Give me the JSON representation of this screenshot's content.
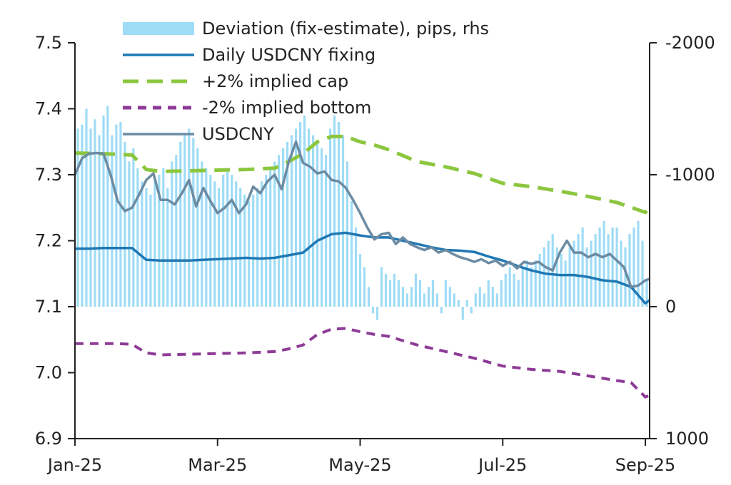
{
  "chart_data": {
    "type": "line",
    "x_ticks": [
      "Jan-25",
      "Mar-25",
      "May-25",
      "Jul-25",
      "Sep-25"
    ],
    "y_left": {
      "range": [
        6.9,
        7.5
      ],
      "ticks": [
        "6.9",
        "7.0",
        "7.1",
        "7.2",
        "7.3",
        "7.4",
        "7.5"
      ]
    },
    "y_right": {
      "range": [
        1000,
        -2000
      ],
      "inverted": true,
      "ticks": [
        "1000",
        "0",
        "-1000",
        "-2000"
      ]
    },
    "grid": false,
    "legend_placement": "top-left",
    "legend": [
      {
        "label": "Deviation (fix-estimate), pips, rhs",
        "style": "bar",
        "color": "#9fdcf5"
      },
      {
        "label": "Daily USDCNY fixing",
        "style": "solid",
        "color": "#1f78b4"
      },
      {
        "label": "+2% implied cap",
        "style": "dashed",
        "color": "#8cc63f"
      },
      {
        "label": "-2% implied bottom",
        "style": "dashed",
        "color": "#8e3b97"
      },
      {
        "label": "USDCNY",
        "style": "solid",
        "color": "#6c8ba3"
      }
    ],
    "series": [
      {
        "key": "fixing",
        "x": [
          0,
          0.1,
          0.2,
          0.3,
          0.4,
          0.5,
          0.6,
          0.7,
          0.8,
          0.9,
          1.0,
          1.1,
          1.2,
          1.3,
          1.4,
          1.5,
          1.6,
          1.7,
          1.8,
          1.9,
          2.0,
          2.1,
          2.2,
          2.3,
          2.4,
          2.5,
          2.6,
          2.7,
          2.8,
          2.9,
          3.0,
          3.1,
          3.2,
          3.3,
          3.4,
          3.5,
          3.6,
          3.7,
          3.8,
          3.9,
          4.0,
          4.03
        ],
        "y": [
          7.188,
          7.188,
          7.189,
          7.189,
          7.189,
          7.171,
          7.17,
          7.17,
          7.17,
          7.171,
          7.172,
          7.173,
          7.174,
          7.173,
          7.174,
          7.178,
          7.182,
          7.2,
          7.21,
          7.212,
          7.208,
          7.205,
          7.205,
          7.2,
          7.195,
          7.19,
          7.186,
          7.185,
          7.183,
          7.176,
          7.17,
          7.162,
          7.155,
          7.15,
          7.148,
          7.148,
          7.145,
          7.14,
          7.138,
          7.13,
          7.105,
          7.11
        ]
      },
      {
        "key": "cap",
        "x": [
          0,
          0.3,
          0.4,
          0.5,
          0.6,
          0.8,
          1.0,
          1.2,
          1.4,
          1.5,
          1.6,
          1.7,
          1.8,
          1.9,
          2.0,
          2.1,
          2.2,
          2.4,
          2.6,
          2.8,
          3.0,
          3.2,
          3.4,
          3.6,
          3.8,
          4.0,
          4.03
        ],
        "y": [
          7.333,
          7.331,
          7.33,
          7.308,
          7.305,
          7.306,
          7.307,
          7.308,
          7.31,
          7.32,
          7.332,
          7.35,
          7.358,
          7.358,
          7.35,
          7.345,
          7.338,
          7.32,
          7.312,
          7.302,
          7.287,
          7.282,
          7.275,
          7.267,
          7.258,
          7.243,
          7.25
        ]
      },
      {
        "key": "bottom",
        "x": [
          0,
          0.3,
          0.4,
          0.5,
          0.6,
          0.8,
          1.0,
          1.2,
          1.4,
          1.5,
          1.6,
          1.7,
          1.8,
          1.9,
          2.0,
          2.1,
          2.2,
          2.4,
          2.6,
          2.8,
          3.0,
          3.2,
          3.4,
          3.6,
          3.8,
          3.9,
          4.0,
          4.03
        ],
        "y": [
          7.044,
          7.044,
          7.043,
          7.03,
          7.027,
          7.028,
          7.029,
          7.03,
          7.032,
          7.036,
          7.042,
          7.058,
          7.066,
          7.067,
          7.062,
          7.058,
          7.055,
          7.042,
          7.032,
          7.022,
          7.01,
          7.005,
          7.002,
          6.995,
          6.988,
          6.985,
          6.963,
          6.966
        ]
      },
      {
        "key": "usdcny",
        "x": [
          0,
          0.05,
          0.1,
          0.15,
          0.2,
          0.25,
          0.3,
          0.35,
          0.4,
          0.45,
          0.5,
          0.55,
          0.6,
          0.65,
          0.7,
          0.75,
          0.8,
          0.85,
          0.9,
          0.95,
          1.0,
          1.05,
          1.1,
          1.15,
          1.2,
          1.25,
          1.3,
          1.35,
          1.4,
          1.45,
          1.5,
          1.55,
          1.6,
          1.65,
          1.7,
          1.75,
          1.8,
          1.85,
          1.9,
          1.95,
          2.0,
          2.05,
          2.1,
          2.15,
          2.2,
          2.25,
          2.3,
          2.35,
          2.4,
          2.45,
          2.5,
          2.55,
          2.6,
          2.65,
          2.7,
          2.75,
          2.8,
          2.85,
          2.9,
          2.95,
          3.0,
          3.05,
          3.1,
          3.15,
          3.2,
          3.25,
          3.3,
          3.35,
          3.4,
          3.45,
          3.5,
          3.55,
          3.6,
          3.65,
          3.7,
          3.75,
          3.8,
          3.85,
          3.9,
          3.95,
          4.0,
          4.03
        ],
        "y": [
          7.3,
          7.325,
          7.332,
          7.333,
          7.332,
          7.3,
          7.26,
          7.245,
          7.25,
          7.27,
          7.292,
          7.302,
          7.262,
          7.262,
          7.255,
          7.272,
          7.292,
          7.252,
          7.28,
          7.26,
          7.242,
          7.25,
          7.262,
          7.242,
          7.255,
          7.282,
          7.272,
          7.29,
          7.3,
          7.278,
          7.32,
          7.35,
          7.318,
          7.312,
          7.302,
          7.305,
          7.292,
          7.29,
          7.28,
          7.262,
          7.242,
          7.22,
          7.202,
          7.21,
          7.212,
          7.195,
          7.205,
          7.195,
          7.19,
          7.186,
          7.19,
          7.182,
          7.186,
          7.18,
          7.175,
          7.172,
          7.168,
          7.172,
          7.166,
          7.17,
          7.162,
          7.168,
          7.158,
          7.168,
          7.165,
          7.168,
          7.16,
          7.155,
          7.182,
          7.2,
          7.182,
          7.182,
          7.175,
          7.18,
          7.175,
          7.18,
          7.17,
          7.16,
          7.13,
          7.132,
          7.14,
          7.142
        ]
      }
    ],
    "deviation_bars": {
      "x": [
        0.02,
        0.05,
        0.08,
        0.11,
        0.14,
        0.17,
        0.2,
        0.23,
        0.26,
        0.29,
        0.32,
        0.35,
        0.38,
        0.41,
        0.44,
        0.47,
        0.5,
        0.53,
        0.56,
        0.59,
        0.62,
        0.65,
        0.68,
        0.71,
        0.74,
        0.77,
        0.8,
        0.83,
        0.86,
        0.89,
        0.92,
        0.95,
        0.98,
        1.01,
        1.04,
        1.07,
        1.1,
        1.13,
        1.16,
        1.19,
        1.22,
        1.25,
        1.28,
        1.31,
        1.34,
        1.37,
        1.4,
        1.43,
        1.46,
        1.49,
        1.52,
        1.55,
        1.58,
        1.61,
        1.64,
        1.67,
        1.7,
        1.73,
        1.76,
        1.79,
        1.82,
        1.85,
        1.88,
        1.91,
        1.94,
        1.97,
        2.0,
        2.03,
        2.06,
        2.09,
        2.12,
        2.15,
        2.18,
        2.21,
        2.24,
        2.27,
        2.3,
        2.33,
        2.36,
        2.39,
        2.42,
        2.45,
        2.48,
        2.51,
        2.54,
        2.57,
        2.6,
        2.63,
        2.66,
        2.69,
        2.72,
        2.75,
        2.78,
        2.81,
        2.84,
        2.87,
        2.9,
        2.93,
        2.96,
        2.99,
        3.02,
        3.05,
        3.08,
        3.11,
        3.14,
        3.17,
        3.2,
        3.23,
        3.26,
        3.29,
        3.32,
        3.35,
        3.38,
        3.41,
        3.44,
        3.47,
        3.5,
        3.53,
        3.56,
        3.59,
        3.62,
        3.65,
        3.68,
        3.71,
        3.74,
        3.77,
        3.8,
        3.83,
        3.86,
        3.89,
        3.92,
        3.95,
        3.98,
        4.01
      ],
      "values": [
        -1350,
        -1380,
        -1500,
        -1350,
        -1420,
        -1300,
        -1450,
        -1520,
        -1300,
        -1380,
        -1400,
        -1250,
        -1100,
        -1200,
        -1050,
        -950,
        -900,
        -850,
        -950,
        -1000,
        -1050,
        -900,
        -1100,
        -1150,
        -1250,
        -1300,
        -1350,
        -1280,
        -1200,
        -1100,
        -1050,
        -1000,
        -950,
        -900,
        -1000,
        -1050,
        -1000,
        -950,
        -900,
        -850,
        -800,
        -850,
        -900,
        -950,
        -1000,
        -1050,
        -1100,
        -1150,
        -1200,
        -1250,
        -1300,
        -1350,
        -1400,
        -1450,
        -1350,
        -1300,
        -1250,
        -1200,
        -1150,
        -1350,
        -1450,
        -1400,
        -1300,
        -1100,
        -800,
        -600,
        -400,
        -300,
        -150,
        50,
        100,
        -300,
        -250,
        -200,
        -250,
        -200,
        -150,
        -100,
        -150,
        -250,
        -200,
        -100,
        -150,
        -200,
        -100,
        50,
        -200,
        -150,
        -100,
        -50,
        100,
        -50,
        50,
        -100,
        -150,
        -100,
        -200,
        -150,
        -100,
        -200,
        -250,
        -300,
        -250,
        -200,
        -300,
        -350,
        -300,
        -350,
        -400,
        -450,
        -500,
        -550,
        -450,
        -400,
        -350,
        -450,
        -500,
        -550,
        -600,
        -450,
        -500,
        -550,
        -600,
        -650,
        -550,
        -600,
        -600,
        -500,
        -450,
        -550,
        -600,
        -650,
        -500,
        -200
      ]
    }
  }
}
